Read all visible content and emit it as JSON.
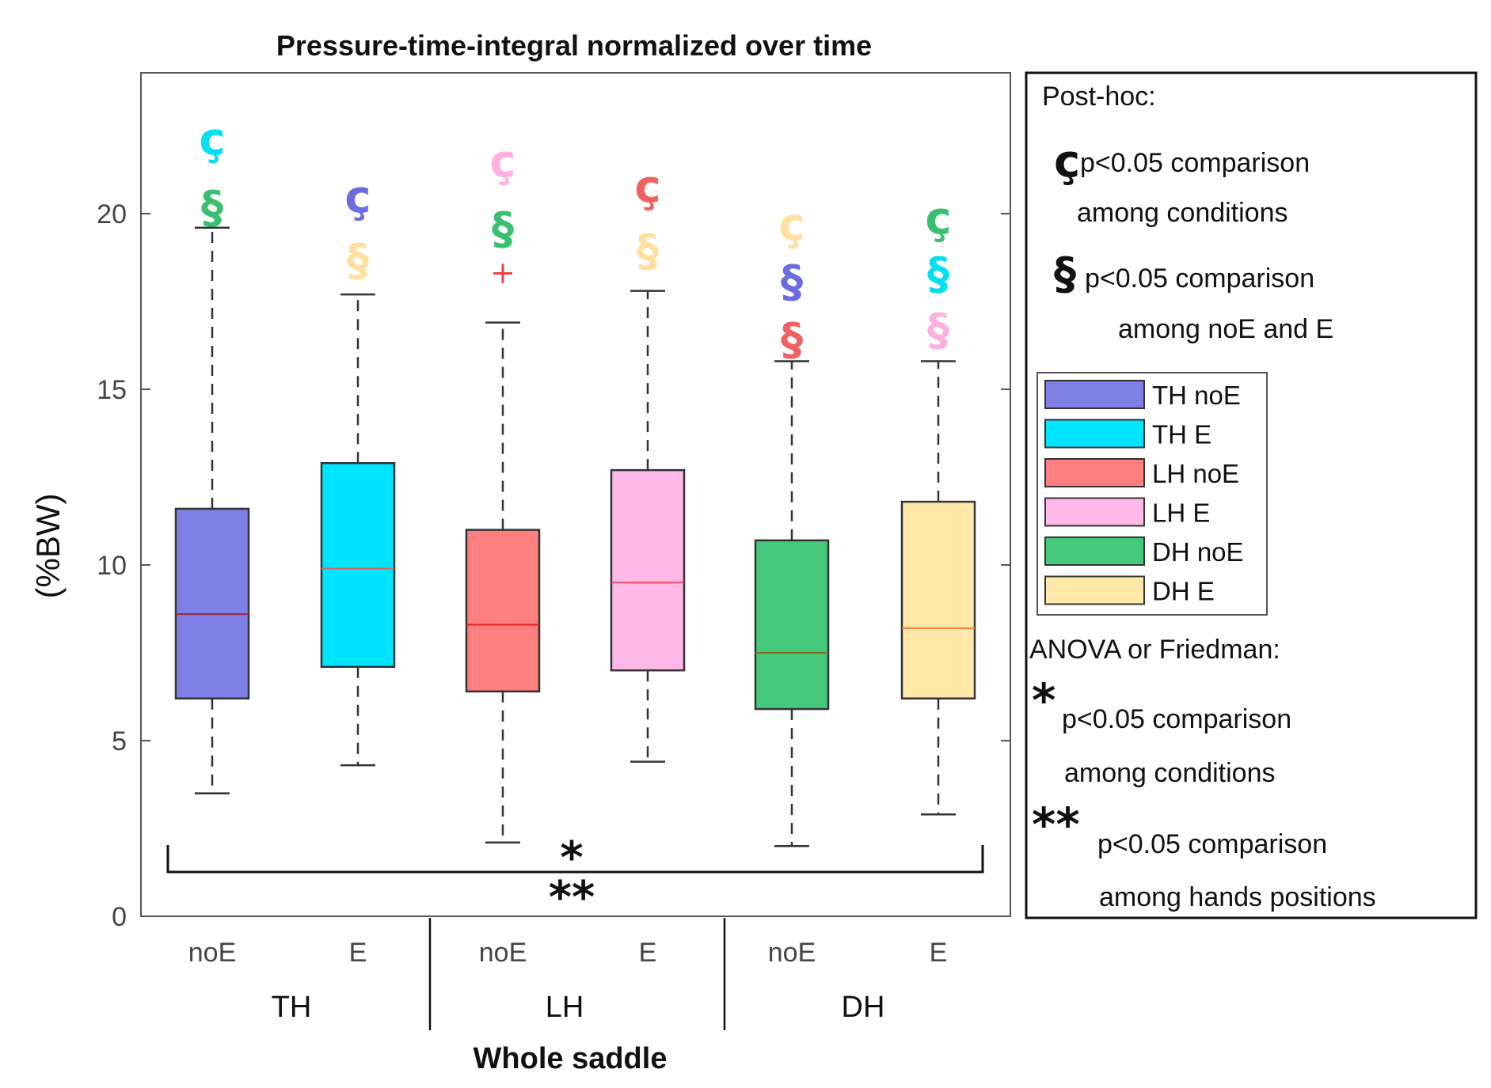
{
  "chart_data": {
    "type": "box",
    "title": "Pressure-time-integral normalized over time",
    "ylabel": "(%BW)",
    "xlabel": "Whole saddle",
    "ylim": [
      0,
      24
    ],
    "yticks": [
      0,
      5,
      10,
      15,
      20
    ],
    "groups": [
      {
        "label": "TH",
        "categories": [
          "noE",
          "E"
        ]
      },
      {
        "label": "LH",
        "categories": [
          "noE",
          "E"
        ]
      },
      {
        "label": "DH",
        "categories": [
          "noE",
          "E"
        ]
      }
    ],
    "series": [
      {
        "name": "TH noE",
        "color": "#7f80e6",
        "median_color": "#a0204a",
        "whisker_low": 3.5,
        "q1": 6.2,
        "median": 8.6,
        "q3": 11.6,
        "whisker_high": 19.6,
        "outliers": [],
        "annotations": [
          {
            "symbol": "ç",
            "color": "#00e0f0"
          },
          {
            "symbol": "§",
            "color": "#38c070"
          }
        ]
      },
      {
        "name": "TH E",
        "color": "#00e5ff",
        "median_color": "#e06060",
        "whisker_low": 4.3,
        "q1": 7.1,
        "median": 9.9,
        "q3": 12.9,
        "whisker_high": 17.7,
        "outliers": [],
        "annotations": [
          {
            "symbol": "ç",
            "color": "#6c6ce0"
          },
          {
            "symbol": "§",
            "color": "#ffe0a0"
          }
        ]
      },
      {
        "name": "LH noE",
        "color": "#fd7f7f",
        "median_color": "#e82020",
        "whisker_low": 2.1,
        "q1": 6.4,
        "median": 8.3,
        "q3": 11.0,
        "whisker_high": 16.9,
        "outliers": [
          18.3
        ],
        "annotations": [
          {
            "symbol": "ç",
            "color": "#ffb0e0"
          },
          {
            "symbol": "§",
            "color": "#38c070"
          }
        ]
      },
      {
        "name": "LH E",
        "color": "#ffb8e8",
        "median_color": "#e85060",
        "whisker_low": 4.4,
        "q1": 7.0,
        "median": 9.5,
        "q3": 12.7,
        "whisker_high": 17.8,
        "outliers": [],
        "annotations": [
          {
            "symbol": "ç",
            "color": "#f06060"
          },
          {
            "symbol": "§",
            "color": "#ffe0a0"
          }
        ]
      },
      {
        "name": "DH noE",
        "color": "#45c97a",
        "median_color": "#8b6a20",
        "whisker_low": 2.0,
        "q1": 5.9,
        "median": 7.5,
        "q3": 10.7,
        "whisker_high": 15.8,
        "outliers": [],
        "annotations": [
          {
            "symbol": "ç",
            "color": "#ffe0a0"
          },
          {
            "symbol": "§",
            "color": "#6c6ce0"
          },
          {
            "symbol": "§",
            "color": "#f06060"
          }
        ]
      },
      {
        "name": "DH E",
        "color": "#ffe8a8",
        "median_color": "#f08040",
        "whisker_low": 2.9,
        "q1": 6.2,
        "median": 8.2,
        "q3": 11.8,
        "whisker_high": 15.8,
        "outliers": [],
        "annotations": [
          {
            "symbol": "ç",
            "color": "#38c070"
          },
          {
            "symbol": "§",
            "color": "#00e0f0"
          },
          {
            "symbol": "§",
            "color": "#ffb0e0"
          }
        ]
      }
    ],
    "bracket": {
      "symbol_top": "*",
      "symbol_bottom": "**"
    }
  },
  "legend": {
    "posthoc_title": "Post-hoc:",
    "posthoc_items": [
      {
        "symbol": "ç",
        "line1": "p<0.05 comparison",
        "line2": "among conditions"
      },
      {
        "symbol": "§",
        "line1": "p<0.05 comparison",
        "line2": "among noE and E"
      }
    ],
    "stats_title": "ANOVA or Friedman:",
    "stats_items": [
      {
        "symbol": "*",
        "line1": "p<0.05 comparison",
        "line2": "among conditions"
      },
      {
        "symbol": "**",
        "line1": "p<0.05 comparison",
        "line2": "among hands positions"
      }
    ]
  }
}
